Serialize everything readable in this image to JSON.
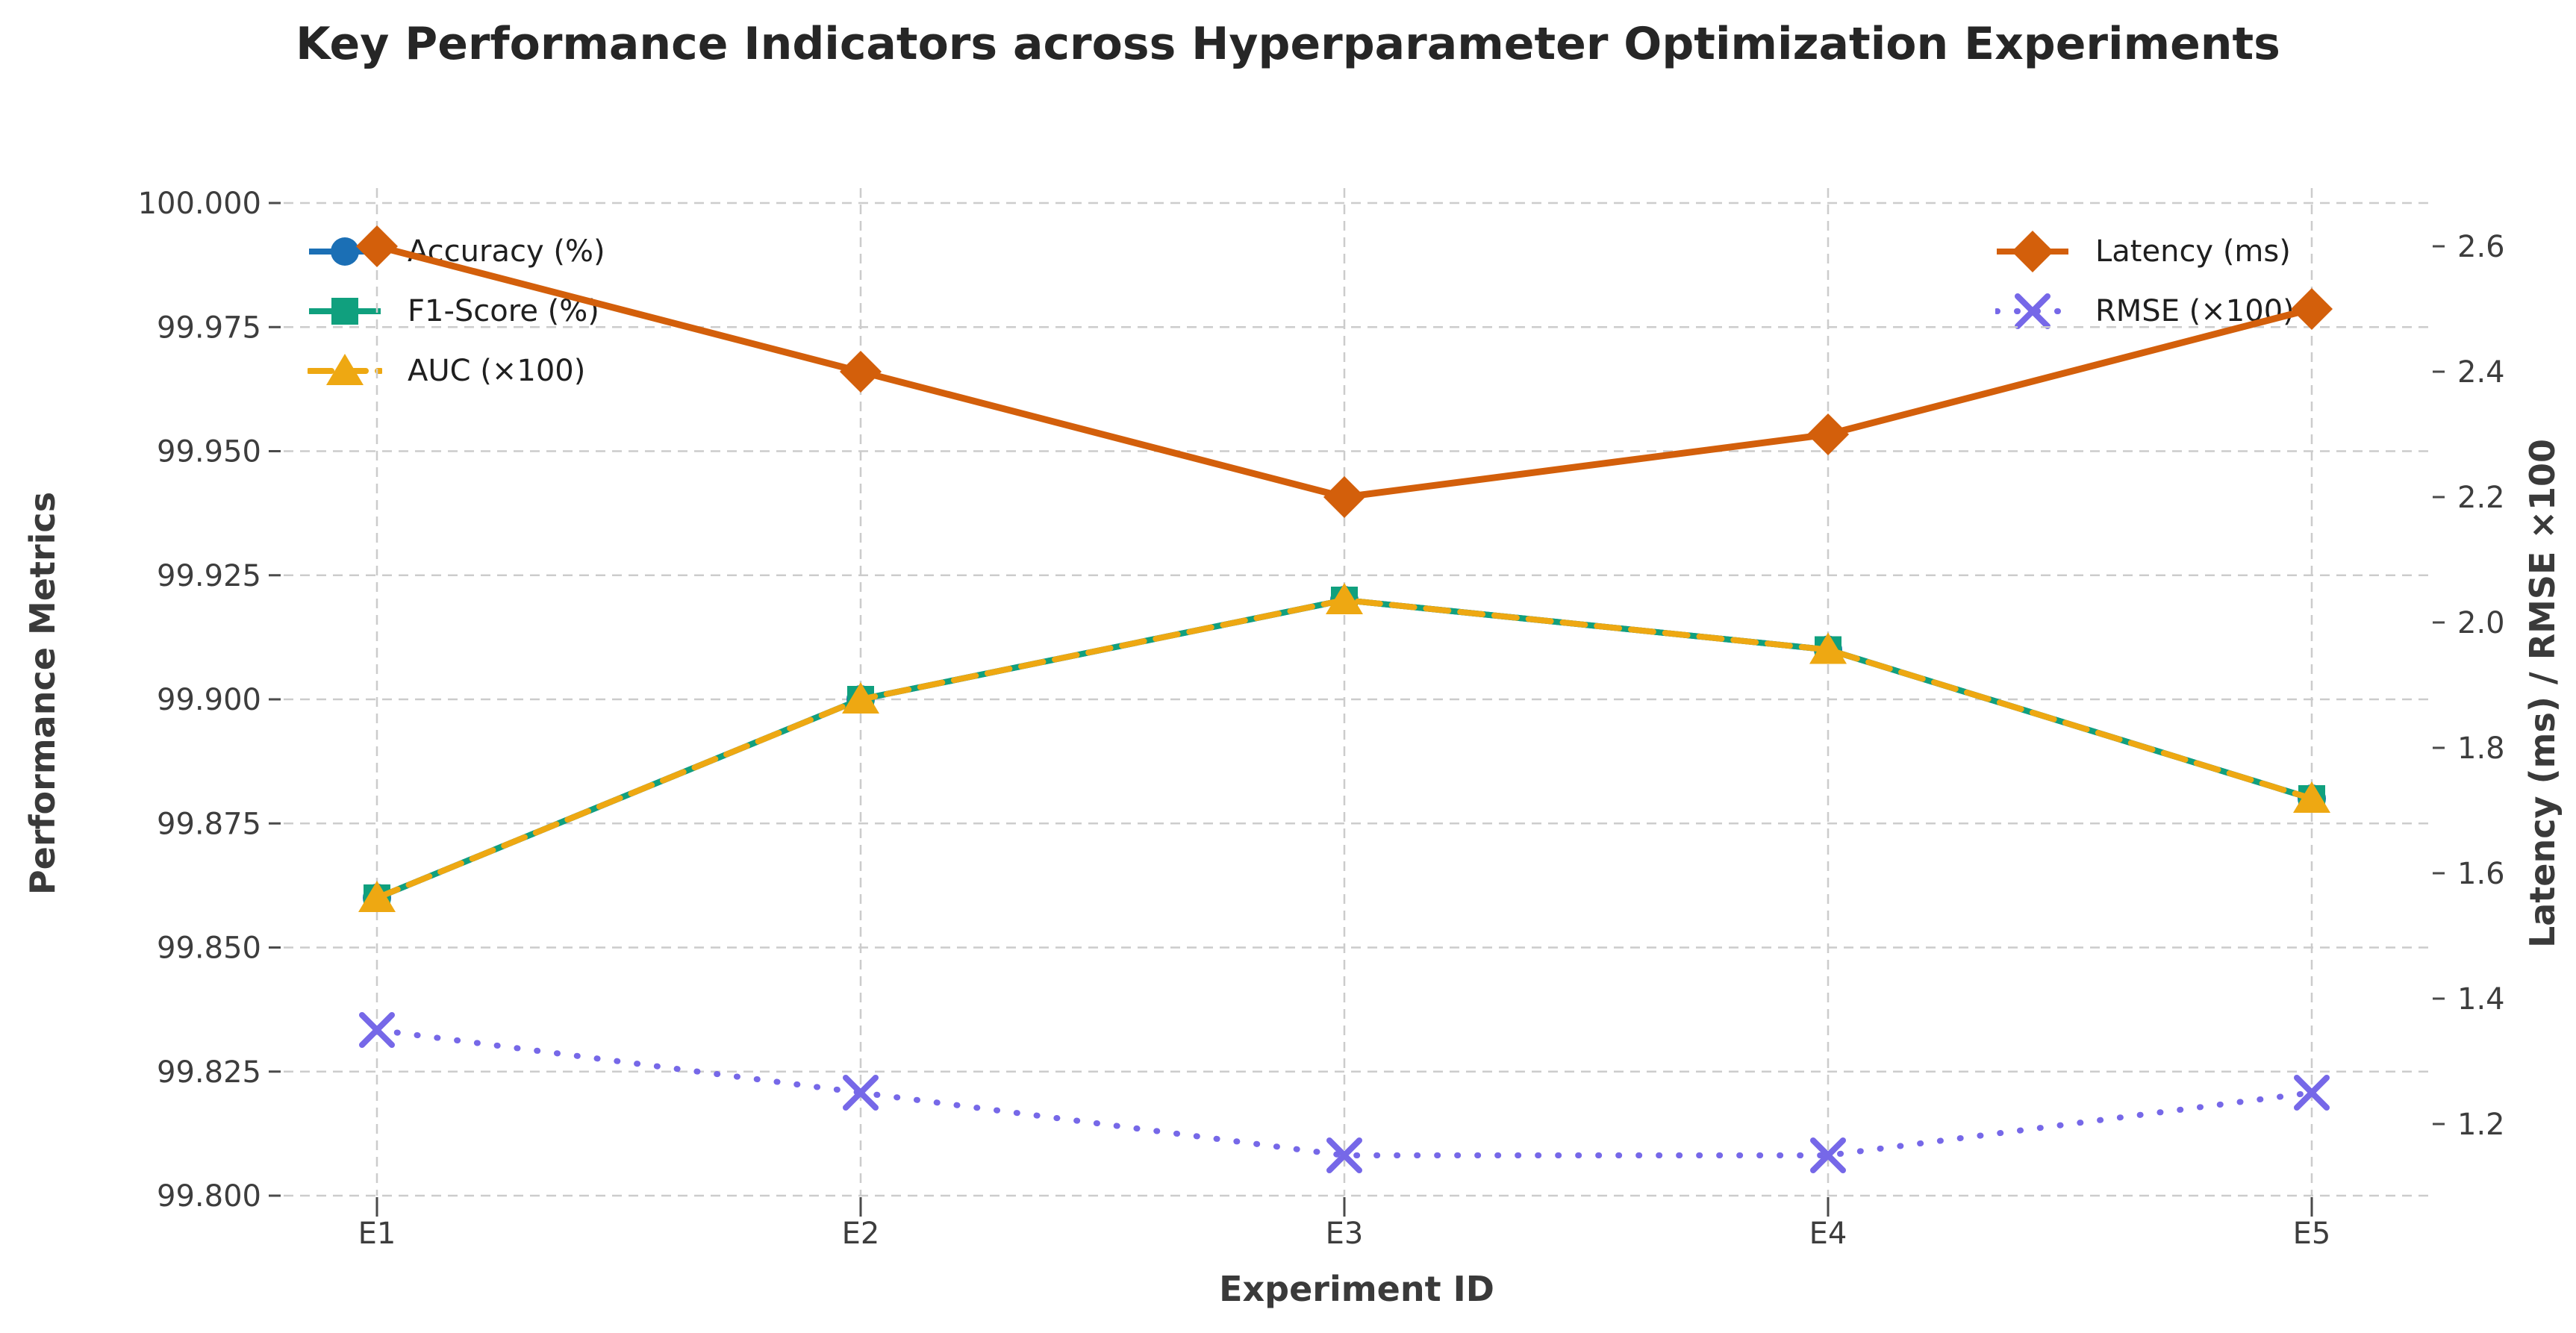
{
  "title": "Key Performance Indicators across Hyperparameter Optimization Experiments",
  "chart_data": {
    "type": "line",
    "title": "Key Performance Indicators across Hyperparameter Optimization Experiments",
    "xlabel": "Experiment ID",
    "ylabel_left": "Performance Metrics",
    "ylabel_right": "Latency (ms) / RMSE ×100",
    "categories": [
      "E1",
      "E2",
      "E3",
      "E4",
      "E5"
    ],
    "ylim_left": [
      99.8,
      100.0
    ],
    "ylim_right": [
      1.2,
      2.6
    ],
    "yticks_left": [
      "100.000",
      "99.975",
      "99.950",
      "99.925",
      "99.900",
      "99.875",
      "99.850",
      "99.825",
      "99.800"
    ],
    "yticks_right": [
      "2.6",
      "2.4",
      "2.2",
      "2.0",
      "1.8",
      "1.6",
      "1.4",
      "1.2"
    ],
    "grid": true,
    "legend_left_position": "upper left",
    "legend_right_position": "upper right",
    "series": [
      {
        "name": "Accuracy (%)",
        "axis": "left",
        "color": "#1b6fb5",
        "marker": "circle",
        "line": "solid",
        "legend": "left",
        "values": [
          99.86,
          99.9,
          99.92,
          99.91,
          99.88
        ]
      },
      {
        "name": "F1-Score (%)",
        "axis": "left",
        "color": "#10a07e",
        "marker": "square",
        "line": "solid",
        "legend": "left",
        "values": [
          99.86,
          99.9,
          99.92,
          99.91,
          99.88
        ]
      },
      {
        "name": "AUC (×100)",
        "axis": "left",
        "color": "#eea812",
        "marker": "triangle",
        "line": "dashed",
        "legend": "left",
        "values": [
          99.86,
          99.9,
          99.92,
          99.91,
          99.88
        ]
      },
      {
        "name": "Latency (ms)",
        "axis": "right",
        "color": "#d35f0b",
        "marker": "diamond",
        "line": "solid",
        "legend": "right",
        "values": [
          2.6,
          2.4,
          2.2,
          2.3,
          2.5
        ]
      },
      {
        "name": "RMSE (×100)",
        "axis": "right",
        "color": "#7668e8",
        "marker": "x",
        "line": "dotted",
        "legend": "right",
        "values": [
          1.35,
          1.25,
          1.15,
          1.15,
          1.25
        ]
      }
    ],
    "colors": {
      "grid": "#cccccc",
      "tick": "#4a4a4a",
      "tick_label": "#3d3d3d",
      "background": "#ffffff"
    }
  }
}
